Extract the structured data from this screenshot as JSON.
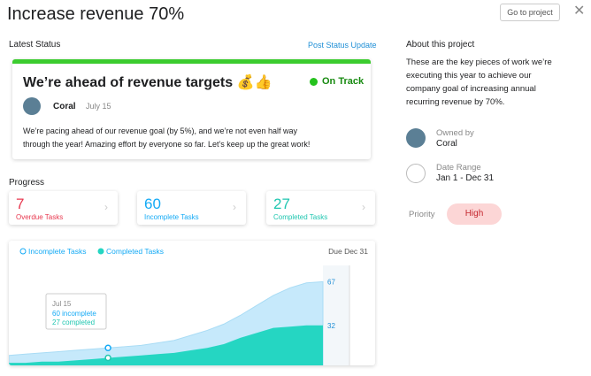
{
  "header": {
    "title": "Increase revenue 70%",
    "button": "Go to project"
  },
  "status": {
    "heading": "Latest Status",
    "link": "Post Status Update",
    "card": {
      "headline": "We’re ahead of revenue targets 💰👍",
      "state": "On Track",
      "author": "Coral",
      "date": "July 15",
      "body": [
        "We’re pacing ahead of our revenue goal (by 5%), and we’re not even half way",
        "through the year! Amazing effort by everyone so far. Let’s keep up the great work!"
      ]
    }
  },
  "progress": {
    "heading": "Progress",
    "tiles": [
      {
        "value": 7,
        "label": "Overdue Tasks",
        "color": "#e8384f"
      },
      {
        "value": 60,
        "label": "Incomplete Tasks",
        "color": "#14aaf5"
      },
      {
        "value": 27,
        "label": "Completed Tasks",
        "color": "#1fc6b0"
      }
    ],
    "chart_data": {
      "type": "area",
      "due": "Due Dec 31",
      "ylim": [
        0,
        80
      ],
      "series": [
        {
          "name": "Incomplete Tasks",
          "color": "#c6e9fb",
          "values": [
            8,
            9,
            10,
            11,
            12,
            13,
            14,
            15,
            16,
            18,
            20,
            24,
            28,
            33,
            40,
            48,
            56,
            62,
            66,
            67
          ],
          "value_labels": [
            "67"
          ]
        },
        {
          "name": "Completed Tasks",
          "color": "#25d6c2",
          "values": [
            2,
            2,
            3,
            3,
            4,
            5,
            6,
            7,
            8,
            9,
            10,
            12,
            14,
            17,
            22,
            26,
            30,
            31,
            32,
            32
          ],
          "value_labels": [
            "32"
          ]
        }
      ],
      "tooltip": {
        "date": "Jul 15",
        "lines": [
          "60 incomplete",
          "27 completed"
        ]
      }
    }
  },
  "about": {
    "heading": "About this project",
    "lines": [
      "These are the key pieces of work we’re",
      "executing this year to achieve our",
      "company goal of increasing annual",
      "recurring revenue by 70%."
    ],
    "owner": {
      "label": "Owned by",
      "value": "Coral"
    },
    "dates": {
      "label": "Date Range",
      "value": "Jan 1 - Dec 31"
    },
    "priority": {
      "label": "Priority",
      "value": "High"
    }
  }
}
